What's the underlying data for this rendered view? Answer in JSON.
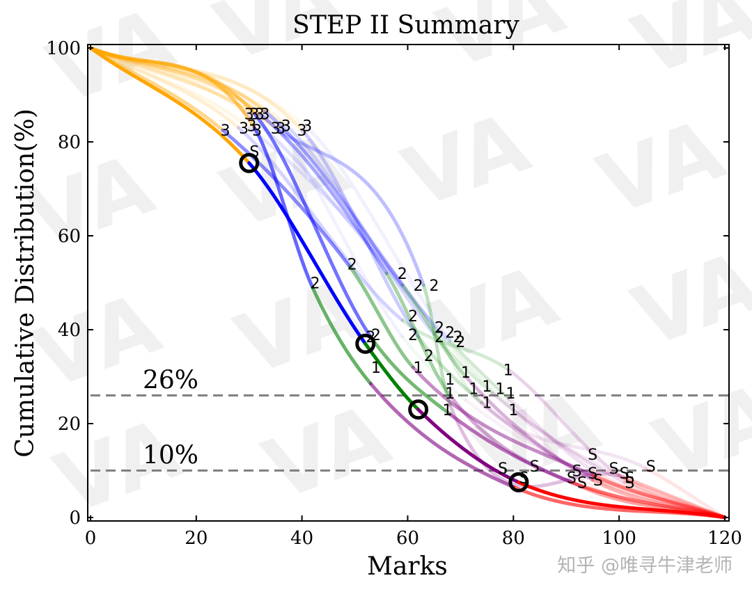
{
  "chart_data": {
    "type": "line",
    "title": "STEP II Summary",
    "xlabel": "Marks",
    "ylabel": "Cumulative Distribution(%)",
    "xlim": [
      0,
      120
    ],
    "ylim": [
      0,
      100
    ],
    "xticks": [
      0,
      20,
      40,
      60,
      80,
      100,
      120
    ],
    "yticks": [
      0,
      20,
      40,
      60,
      80,
      100
    ],
    "grid": false,
    "reference_lines": [
      {
        "label": "26%",
        "y": 26
      },
      {
        "label": "10%",
        "y": 10
      }
    ],
    "segment_colors": {
      "3": "#ffa500",
      "2": "#0000ff",
      "1": "#008000",
      "S": "#800080",
      "end": "#ff0000"
    },
    "years": [
      {
        "alpha": 1.0,
        "g3": [
          30,
          75.5
        ],
        "g2": [
          52,
          37
        ],
        "g1": [
          62,
          23
        ],
        "gS": [
          81,
          7.5
        ],
        "end": [
          120,
          0
        ]
      },
      {
        "alpha": 0.6,
        "g3": [
          31,
          83
        ],
        "g2": [
          42,
          49
        ],
        "g1": [
          53,
          28.5
        ],
        "gS": [
          80,
          6.5
        ],
        "end": [
          120,
          0
        ]
      },
      {
        "alpha": 0.55,
        "g3": [
          31,
          86
        ],
        "g2": [
          53,
          38.5
        ],
        "g1": [
          68,
          22
        ],
        "gS": [
          91,
          7.5
        ],
        "end": [
          120,
          0
        ]
      },
      {
        "alpha": 0.45,
        "g3": [
          25,
          82.5
        ],
        "g2": [
          49,
          53.5
        ],
        "g1": [
          61,
          32
        ],
        "gS": [
          95,
          9
        ],
        "end": [
          120,
          0
        ]
      },
      {
        "alpha": 0.35,
        "g3": [
          32,
          86
        ],
        "g2": [
          56,
          52
        ],
        "g1": [
          68,
          26
        ],
        "gS": [
          93,
          6.5
        ],
        "end": [
          120,
          0
        ]
      },
      {
        "alpha": 0.3,
        "g3": [
          33,
          86.5
        ],
        "g2": [
          59,
          49.5
        ],
        "g1": [
          71,
          30
        ],
        "gS": [
          95,
          8
        ],
        "end": [
          120,
          0
        ]
      },
      {
        "alpha": 0.25,
        "g3": [
          35,
          83
        ],
        "g2": [
          63,
          49.5
        ],
        "g1": [
          68,
          24
        ],
        "gS": [
          101,
          8.5
        ],
        "end": [
          120,
          0
        ]
      },
      {
        "alpha": 0.2,
        "g3": [
          40,
          82.5
        ],
        "g2": [
          62,
          38.5
        ],
        "g1": [
          74,
          24.5
        ],
        "gS": [
          95,
          8.5
        ],
        "end": [
          120,
          0
        ]
      },
      {
        "alpha": 0.17,
        "g3": [
          28,
          83
        ],
        "g2": [
          59,
          42
        ],
        "g1": [
          79,
          31.5
        ],
        "gS": [
          100,
          9
        ],
        "end": [
          120,
          0
        ]
      },
      {
        "alpha": 0.15,
        "g3": [
          37,
          83.5
        ],
        "g2": [
          65,
          39
        ],
        "g1": [
          76,
          26.5
        ],
        "gS": [
          101,
          7.5
        ],
        "end": [
          120,
          0
        ]
      },
      {
        "alpha": 0.12,
        "g3": [
          29,
          86.5
        ],
        "g2": [
          68,
          37.5
        ],
        "g1": [
          79,
          25.5
        ],
        "gS": [
          95,
          10
        ],
        "end": [
          120,
          0
        ]
      },
      {
        "alpha": 0.1,
        "g3": [
          30,
          83
        ],
        "g2": [
          65,
          40.5
        ],
        "g1": [
          72,
          26.5
        ],
        "gS": [
          105,
          10.5
        ],
        "end": [
          120,
          0
        ]
      },
      {
        "alpha": 0.08,
        "g3": [
          36,
          83
        ],
        "g2": [
          67,
          38
        ],
        "g1": [
          80,
          23
        ],
        "gS": [
          98,
          10
        ],
        "end": [
          120,
          0
        ]
      },
      {
        "alpha": 0.06,
        "g3": [
          41,
          83
        ],
        "g2": [
          68,
          38
        ],
        "g1": [
          79,
          25
        ],
        "gS": [
          93,
          8
        ],
        "end": [
          120,
          0
        ]
      },
      {
        "alpha": 0.05,
        "g3": [
          33,
          86
        ],
        "g2": [
          59,
          38.5
        ],
        "g1": [
          71,
          25
        ],
        "gS": [
          94,
          9.5
        ],
        "end": [
          120,
          0
        ]
      }
    ],
    "labels": [
      {
        "t": "3",
        "x": 25.5,
        "y": 82.5
      },
      {
        "t": "3",
        "x": 29,
        "y": 83
      },
      {
        "t": "3",
        "x": 30.5,
        "y": 83.5
      },
      {
        "t": "3",
        "x": 31.5,
        "y": 82.5
      },
      {
        "t": "3",
        "x": 30,
        "y": 86
      },
      {
        "t": "3",
        "x": 31,
        "y": 86
      },
      {
        "t": "3",
        "x": 32,
        "y": 86
      },
      {
        "t": "3",
        "x": 33,
        "y": 86
      },
      {
        "t": "3",
        "x": 35,
        "y": 83
      },
      {
        "t": "3",
        "x": 36,
        "y": 83
      },
      {
        "t": "3",
        "x": 37,
        "y": 83.5
      },
      {
        "t": "3",
        "x": 40,
        "y": 82.5
      },
      {
        "t": "3",
        "x": 41,
        "y": 83.5
      },
      {
        "t": "S",
        "x": 31,
        "y": 78
      },
      {
        "t": "2",
        "x": 49.5,
        "y": 54
      },
      {
        "t": "2",
        "x": 42.5,
        "y": 50
      },
      {
        "t": "2",
        "x": 59,
        "y": 52
      },
      {
        "t": "2",
        "x": 62,
        "y": 49.5
      },
      {
        "t": "2",
        "x": 65,
        "y": 49.5
      },
      {
        "t": "2",
        "x": 61,
        "y": 43
      },
      {
        "t": "2",
        "x": 53,
        "y": 38.5
      },
      {
        "t": "2",
        "x": 54,
        "y": 39
      },
      {
        "t": "2",
        "x": 61,
        "y": 39
      },
      {
        "t": "2",
        "x": 66,
        "y": 40.5
      },
      {
        "t": "2",
        "x": 68,
        "y": 39.5
      },
      {
        "t": "2",
        "x": 69.5,
        "y": 38.5
      },
      {
        "t": "2",
        "x": 66,
        "y": 38.5
      },
      {
        "t": "2",
        "x": 70,
        "y": 37.5
      },
      {
        "t": "2",
        "x": 64,
        "y": 34.5
      },
      {
        "t": "1",
        "x": 54,
        "y": 32
      },
      {
        "t": "1",
        "x": 62,
        "y": 32
      },
      {
        "t": "1",
        "x": 71,
        "y": 31
      },
      {
        "t": "1",
        "x": 79,
        "y": 31.5
      },
      {
        "t": "1",
        "x": 68,
        "y": 29.5
      },
      {
        "t": "1",
        "x": 72.5,
        "y": 27.5
      },
      {
        "t": "1",
        "x": 75,
        "y": 28
      },
      {
        "t": "1",
        "x": 77.5,
        "y": 27.5
      },
      {
        "t": "1",
        "x": 79.5,
        "y": 26.5
      },
      {
        "t": "1",
        "x": 68,
        "y": 26.5
      },
      {
        "t": "1",
        "x": 75,
        "y": 24.5
      },
      {
        "t": "1",
        "x": 67.5,
        "y": 23
      },
      {
        "t": "1",
        "x": 80,
        "y": 23
      },
      {
        "t": "S",
        "x": 78,
        "y": 10.5
      },
      {
        "t": "S",
        "x": 84,
        "y": 11
      },
      {
        "t": "S",
        "x": 95,
        "y": 13.5
      },
      {
        "t": "S",
        "x": 92,
        "y": 10
      },
      {
        "t": "S",
        "x": 99,
        "y": 10.5
      },
      {
        "t": "S",
        "x": 106,
        "y": 11
      },
      {
        "t": "S",
        "x": 91,
        "y": 8.5
      },
      {
        "t": "S",
        "x": 93,
        "y": 7.5
      },
      {
        "t": "S",
        "x": 95,
        "y": 9.5
      },
      {
        "t": "S",
        "x": 96,
        "y": 8
      },
      {
        "t": "S",
        "x": 101,
        "y": 9.5
      },
      {
        "t": "S",
        "x": 102,
        "y": 8.5
      },
      {
        "t": "S",
        "x": 102,
        "y": 7.5
      },
      {
        "t": "S",
        "x": 82,
        "y": 8.5
      }
    ],
    "highlight_points": [
      {
        "x": 30,
        "y": 75.5
      },
      {
        "x": 52,
        "y": 37
      },
      {
        "x": 62,
        "y": 23
      },
      {
        "x": 81,
        "y": 7.5
      }
    ]
  },
  "watermark": {
    "text": "VA",
    "credit": "知乎 @唯寻牛津老师"
  }
}
